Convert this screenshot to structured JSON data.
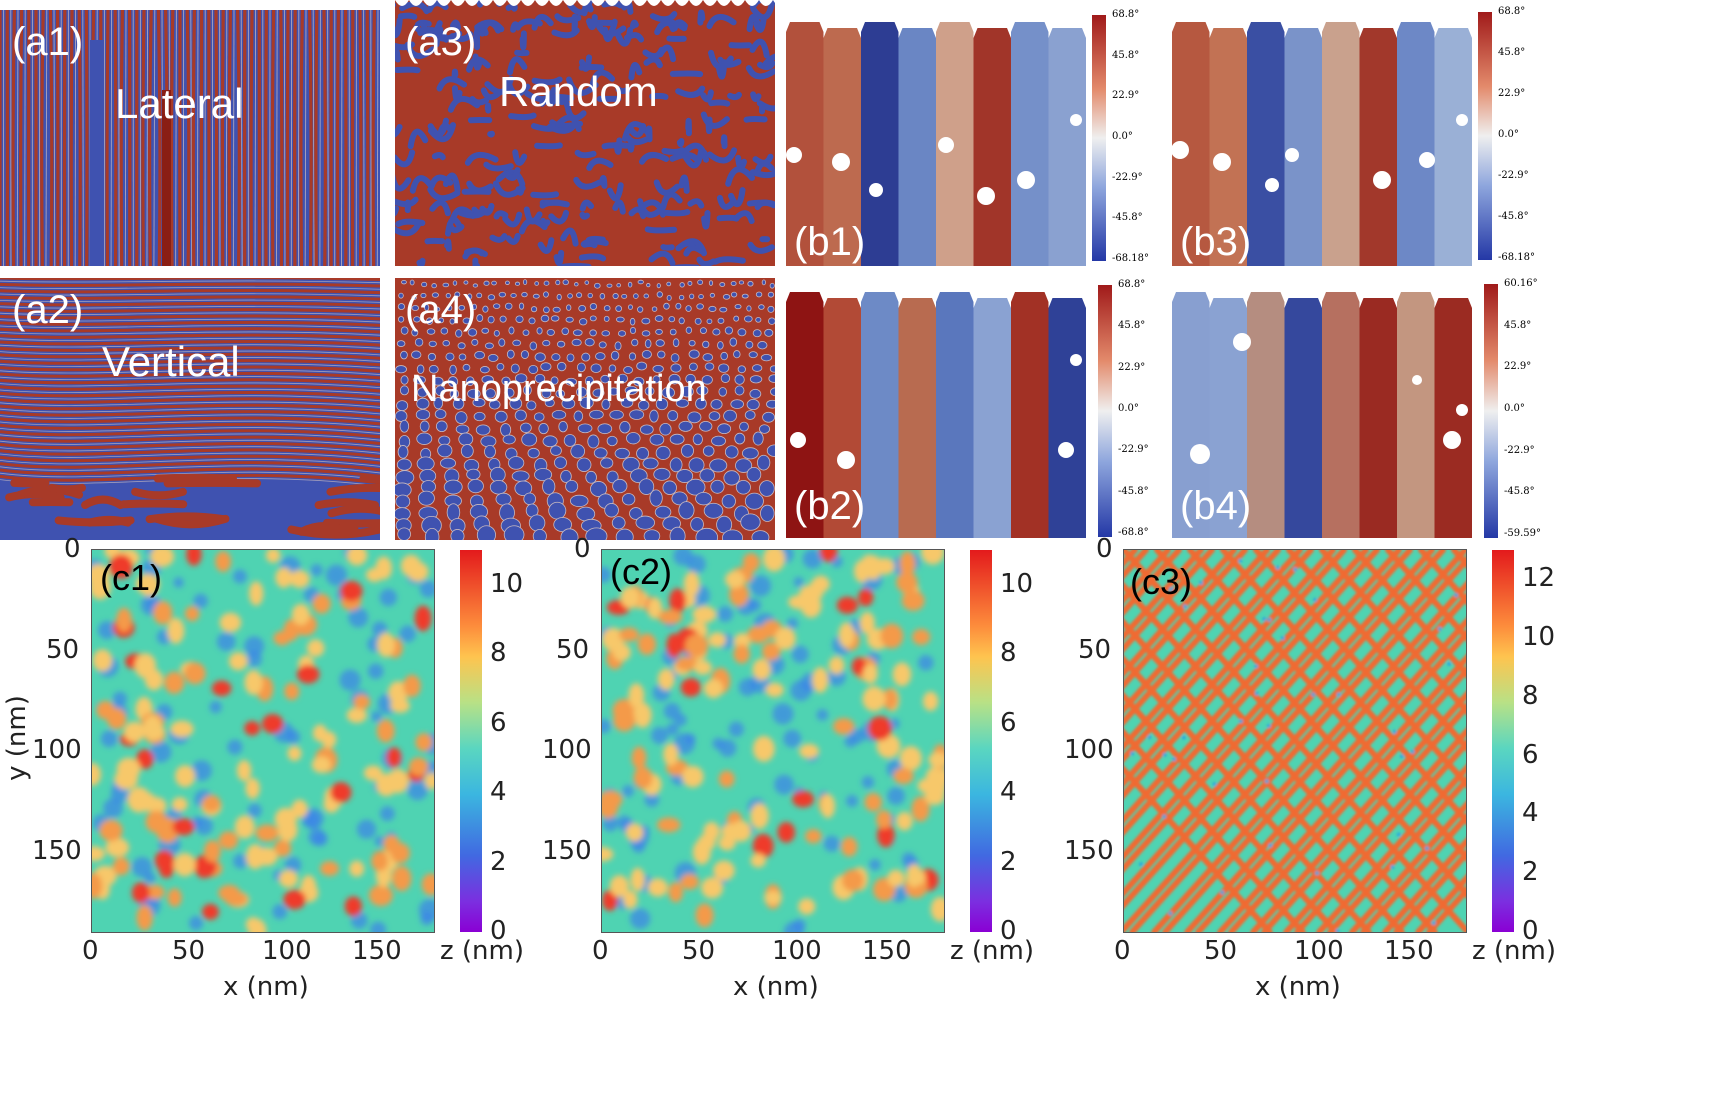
{
  "colors": {
    "domain_red": "#a83a28",
    "domain_blue": "#3f52b0",
    "stripe_light": "#c8b9c0",
    "white": "#ffffff"
  },
  "a_panels": [
    {
      "tag": "(a1)",
      "caption": "Lateral",
      "pattern": "vertical-stripes"
    },
    {
      "tag": "(a2)",
      "caption": "Vertical",
      "pattern": "horizontal-stripes"
    },
    {
      "tag": "(a3)",
      "caption": "Random",
      "pattern": "labyrinth"
    },
    {
      "tag": "(a4)",
      "caption": "Nanoprecipitation",
      "pattern": "dots"
    }
  ],
  "b_panels": [
    {
      "tag": "(b1)",
      "colorbar_ticks": [
        "68.8°",
        "45.8°",
        "22.9°",
        "0.0°",
        "-22.9°",
        "-45.8°",
        "-68.18°"
      ]
    },
    {
      "tag": "(b2)",
      "colorbar_ticks": [
        "68.8°",
        "45.8°",
        "22.9°",
        "0.0°",
        "-22.9°",
        "-45.8°",
        "-68.8°"
      ]
    },
    {
      "tag": "(b3)",
      "colorbar_ticks": [
        "68.8°",
        "45.8°",
        "22.9°",
        "0.0°",
        "-22.9°",
        "-45.8°",
        "-68.18°"
      ]
    },
    {
      "tag": "(b4)",
      "colorbar_ticks": [
        "60.16°",
        "45.8°",
        "22.9°",
        "0.0°",
        "-22.9°",
        "-45.8°",
        "-59.59°"
      ]
    }
  ],
  "c_panels": [
    {
      "tag": "(c1)",
      "x_label": "x (nm)",
      "y_label": "y (nm)",
      "colorbar_label": "z (nm)",
      "x_ticks": [
        "0",
        "50",
        "100",
        "150"
      ],
      "y_ticks": [
        "0",
        "50",
        "100",
        "150"
      ],
      "colorbar_ticks": [
        "10",
        "8",
        "6",
        "4",
        "2",
        "0"
      ]
    },
    {
      "tag": "(c2)",
      "x_label": "x (nm)",
      "y_label": "",
      "colorbar_label": "z (nm)",
      "x_ticks": [
        "0",
        "50",
        "100",
        "150"
      ],
      "y_ticks": [
        "0",
        "50",
        "100",
        "150"
      ],
      "colorbar_ticks": [
        "10",
        "8",
        "6",
        "4",
        "2",
        "0"
      ]
    },
    {
      "tag": "(c3)",
      "x_label": "x (nm)",
      "y_label": "",
      "colorbar_label": "z (nm)",
      "x_ticks": [
        "0",
        "50",
        "100",
        "150"
      ],
      "y_ticks": [
        "0",
        "50",
        "100",
        "150"
      ],
      "colorbar_ticks": [
        "12",
        "10",
        "8",
        "6",
        "4",
        "2",
        "0"
      ]
    }
  ],
  "c_axis_range_nm": [
    0,
    190
  ],
  "c_colorbar_range_nm": [
    [
      0,
      11
    ],
    [
      0,
      11
    ],
    [
      0,
      13
    ]
  ]
}
